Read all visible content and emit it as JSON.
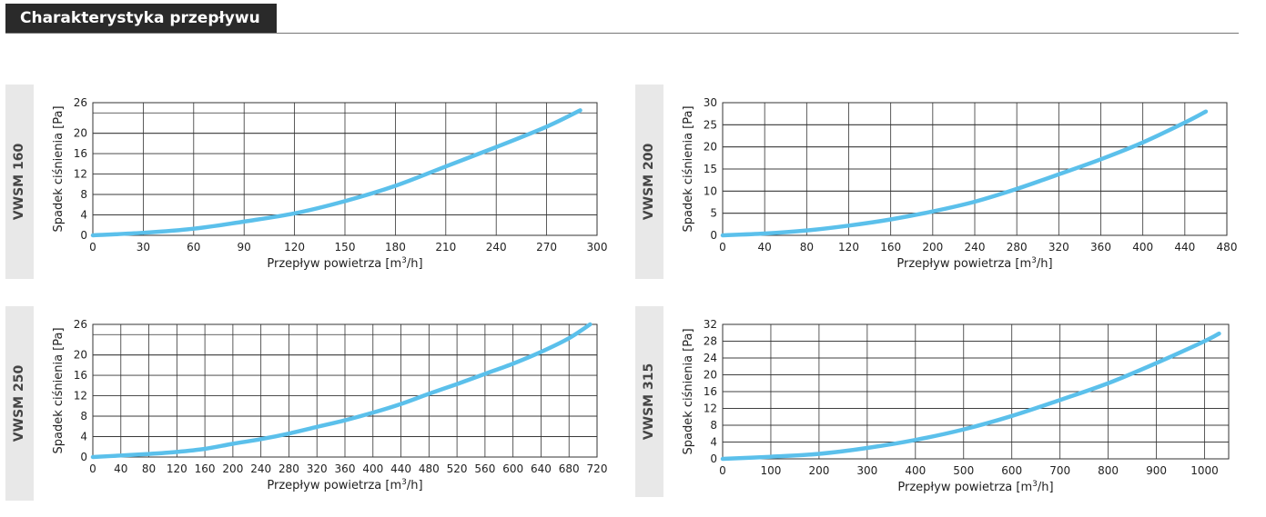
{
  "header": {
    "title": "Charakterystyka przepływu"
  },
  "chart_data": [
    {
      "type": "line",
      "panel_label": "VWSM 160",
      "xlabel_main": "Przepływ powietrza [m",
      "xlabel_sup": "3",
      "xlabel_end": "/h]",
      "ylabel": "Spadek ciśnienia [Pa]",
      "xlim": [
        0,
        300
      ],
      "ylim": [
        0,
        26
      ],
      "xticks": [
        0,
        30,
        60,
        90,
        120,
        150,
        180,
        210,
        240,
        270,
        300
      ],
      "yticks": [
        0,
        4,
        8,
        12,
        16,
        20,
        26
      ],
      "grid": true,
      "series_color": "#5bc0eb",
      "x": [
        0,
        30,
        60,
        90,
        120,
        150,
        180,
        210,
        240,
        270,
        290
      ],
      "y": [
        0,
        0.5,
        1.3,
        2.7,
        4.3,
        6.7,
        9.7,
        13.5,
        17.3,
        21.3,
        24.5
      ]
    },
    {
      "type": "line",
      "panel_label": "VWSM 200",
      "xlabel_main": "Przepływ powietrza [m",
      "xlabel_sup": "3",
      "xlabel_end": "/h]",
      "ylabel": "Spadek ciśnienia [Pa]",
      "xlim": [
        0,
        480
      ],
      "ylim": [
        0,
        30
      ],
      "xticks": [
        0,
        40,
        80,
        120,
        160,
        200,
        240,
        280,
        320,
        360,
        400,
        440,
        480
      ],
      "yticks": [
        0,
        5,
        10,
        15,
        20,
        25,
        30
      ],
      "grid": true,
      "series_color": "#5bc0eb",
      "x": [
        0,
        40,
        80,
        120,
        160,
        200,
        240,
        280,
        320,
        360,
        400,
        440,
        460
      ],
      "y": [
        0,
        0.4,
        1.1,
        2.2,
        3.6,
        5.4,
        7.6,
        10.5,
        13.8,
        17.2,
        21.0,
        25.5,
        28
      ]
    },
    {
      "type": "line",
      "panel_label": "VWSM 250",
      "xlabel_main": "Przepływ powietrza [m",
      "xlabel_sup": "3",
      "xlabel_end": "/h]",
      "ylabel": "Spadek ciśnienia [Pa]",
      "xlim": [
        0,
        720
      ],
      "ylim": [
        0,
        26
      ],
      "xticks": [
        0,
        40,
        80,
        120,
        160,
        200,
        240,
        280,
        320,
        360,
        400,
        440,
        480,
        520,
        560,
        600,
        640,
        680,
        720
      ],
      "yticks": [
        0,
        4,
        8,
        12,
        16,
        20,
        26
      ],
      "grid": true,
      "series_color": "#5bc0eb",
      "x": [
        0,
        40,
        80,
        120,
        160,
        200,
        240,
        280,
        320,
        360,
        400,
        440,
        480,
        520,
        560,
        600,
        640,
        680,
        710
      ],
      "y": [
        0,
        0.3,
        0.6,
        1.0,
        1.6,
        2.6,
        3.5,
        4.6,
        5.9,
        7.2,
        8.7,
        10.4,
        12.4,
        14.3,
        16.3,
        18.3,
        20.6,
        23.3,
        26
      ]
    },
    {
      "type": "line",
      "panel_label": "VWSM 315",
      "xlabel_main": "Przepływ powietrza [m",
      "xlabel_sup": "3",
      "xlabel_end": "/h]",
      "ylabel": "Spadek ciśnienia [Pa]",
      "xlim": [
        0,
        1050
      ],
      "ylim": [
        0,
        32
      ],
      "xticks": [
        0,
        100,
        200,
        300,
        400,
        500,
        600,
        700,
        800,
        900,
        1000
      ],
      "yticks": [
        0,
        4,
        8,
        12,
        16,
        20,
        24,
        28,
        32
      ],
      "grid": true,
      "series_color": "#5bc0eb",
      "x": [
        0,
        100,
        200,
        300,
        400,
        500,
        600,
        700,
        800,
        900,
        1000,
        1030
      ],
      "y": [
        0,
        0.5,
        1.2,
        2.6,
        4.5,
        7.0,
        10.2,
        14.0,
        18.0,
        22.8,
        28.0,
        29.8
      ]
    }
  ]
}
